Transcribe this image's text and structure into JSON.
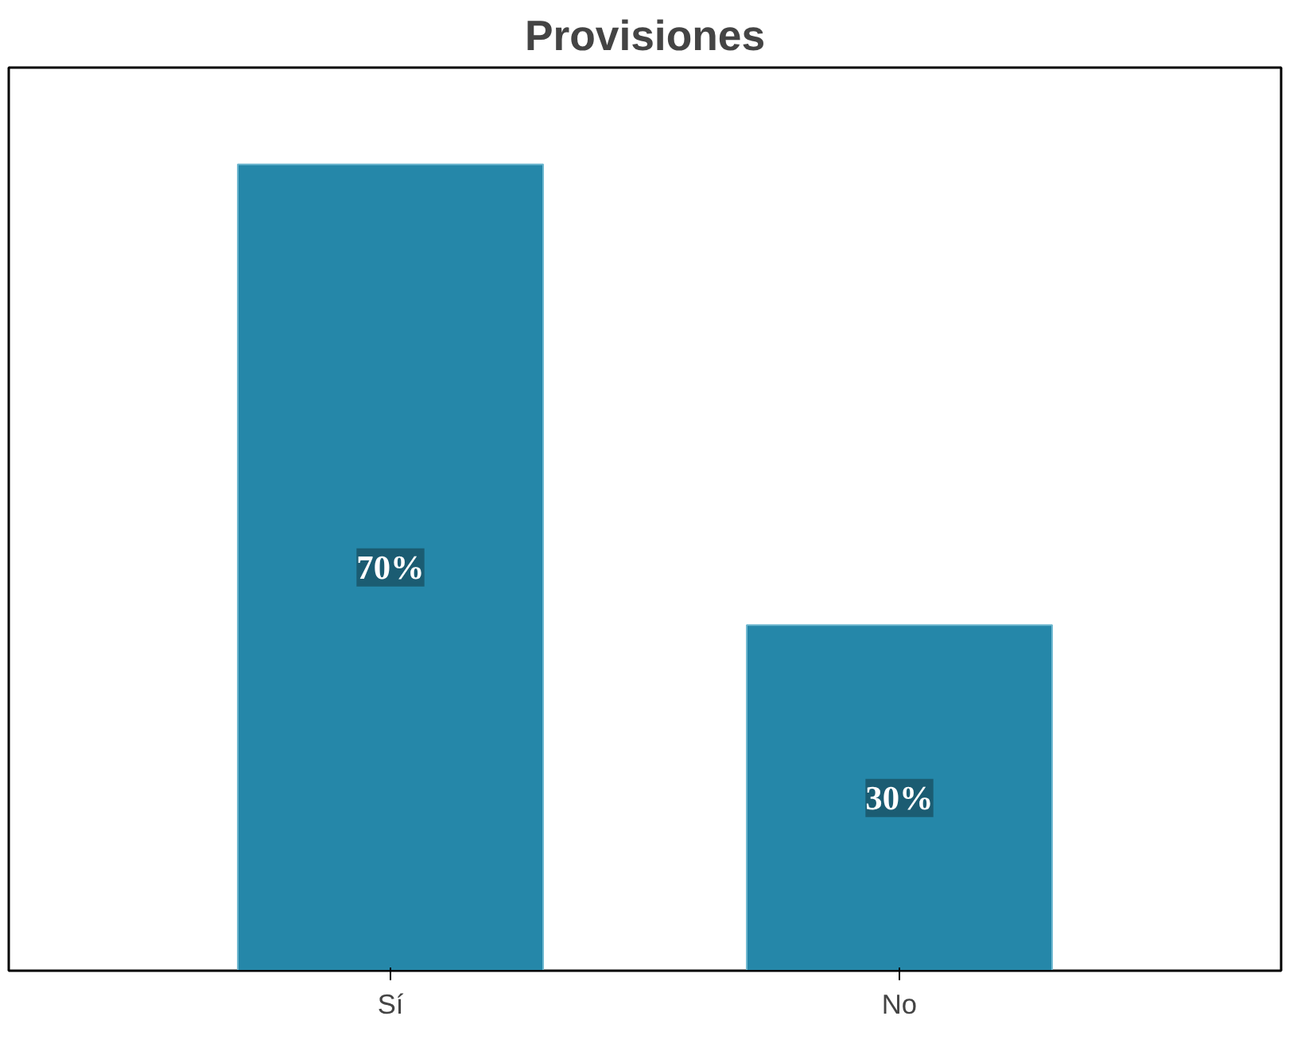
{
  "chart_data": {
    "type": "bar",
    "title": "Provisiones",
    "categories": [
      "Sí",
      "No"
    ],
    "values": [
      70,
      30
    ],
    "value_labels": [
      "70%",
      "30%"
    ],
    "color": "#2587a9"
  }
}
